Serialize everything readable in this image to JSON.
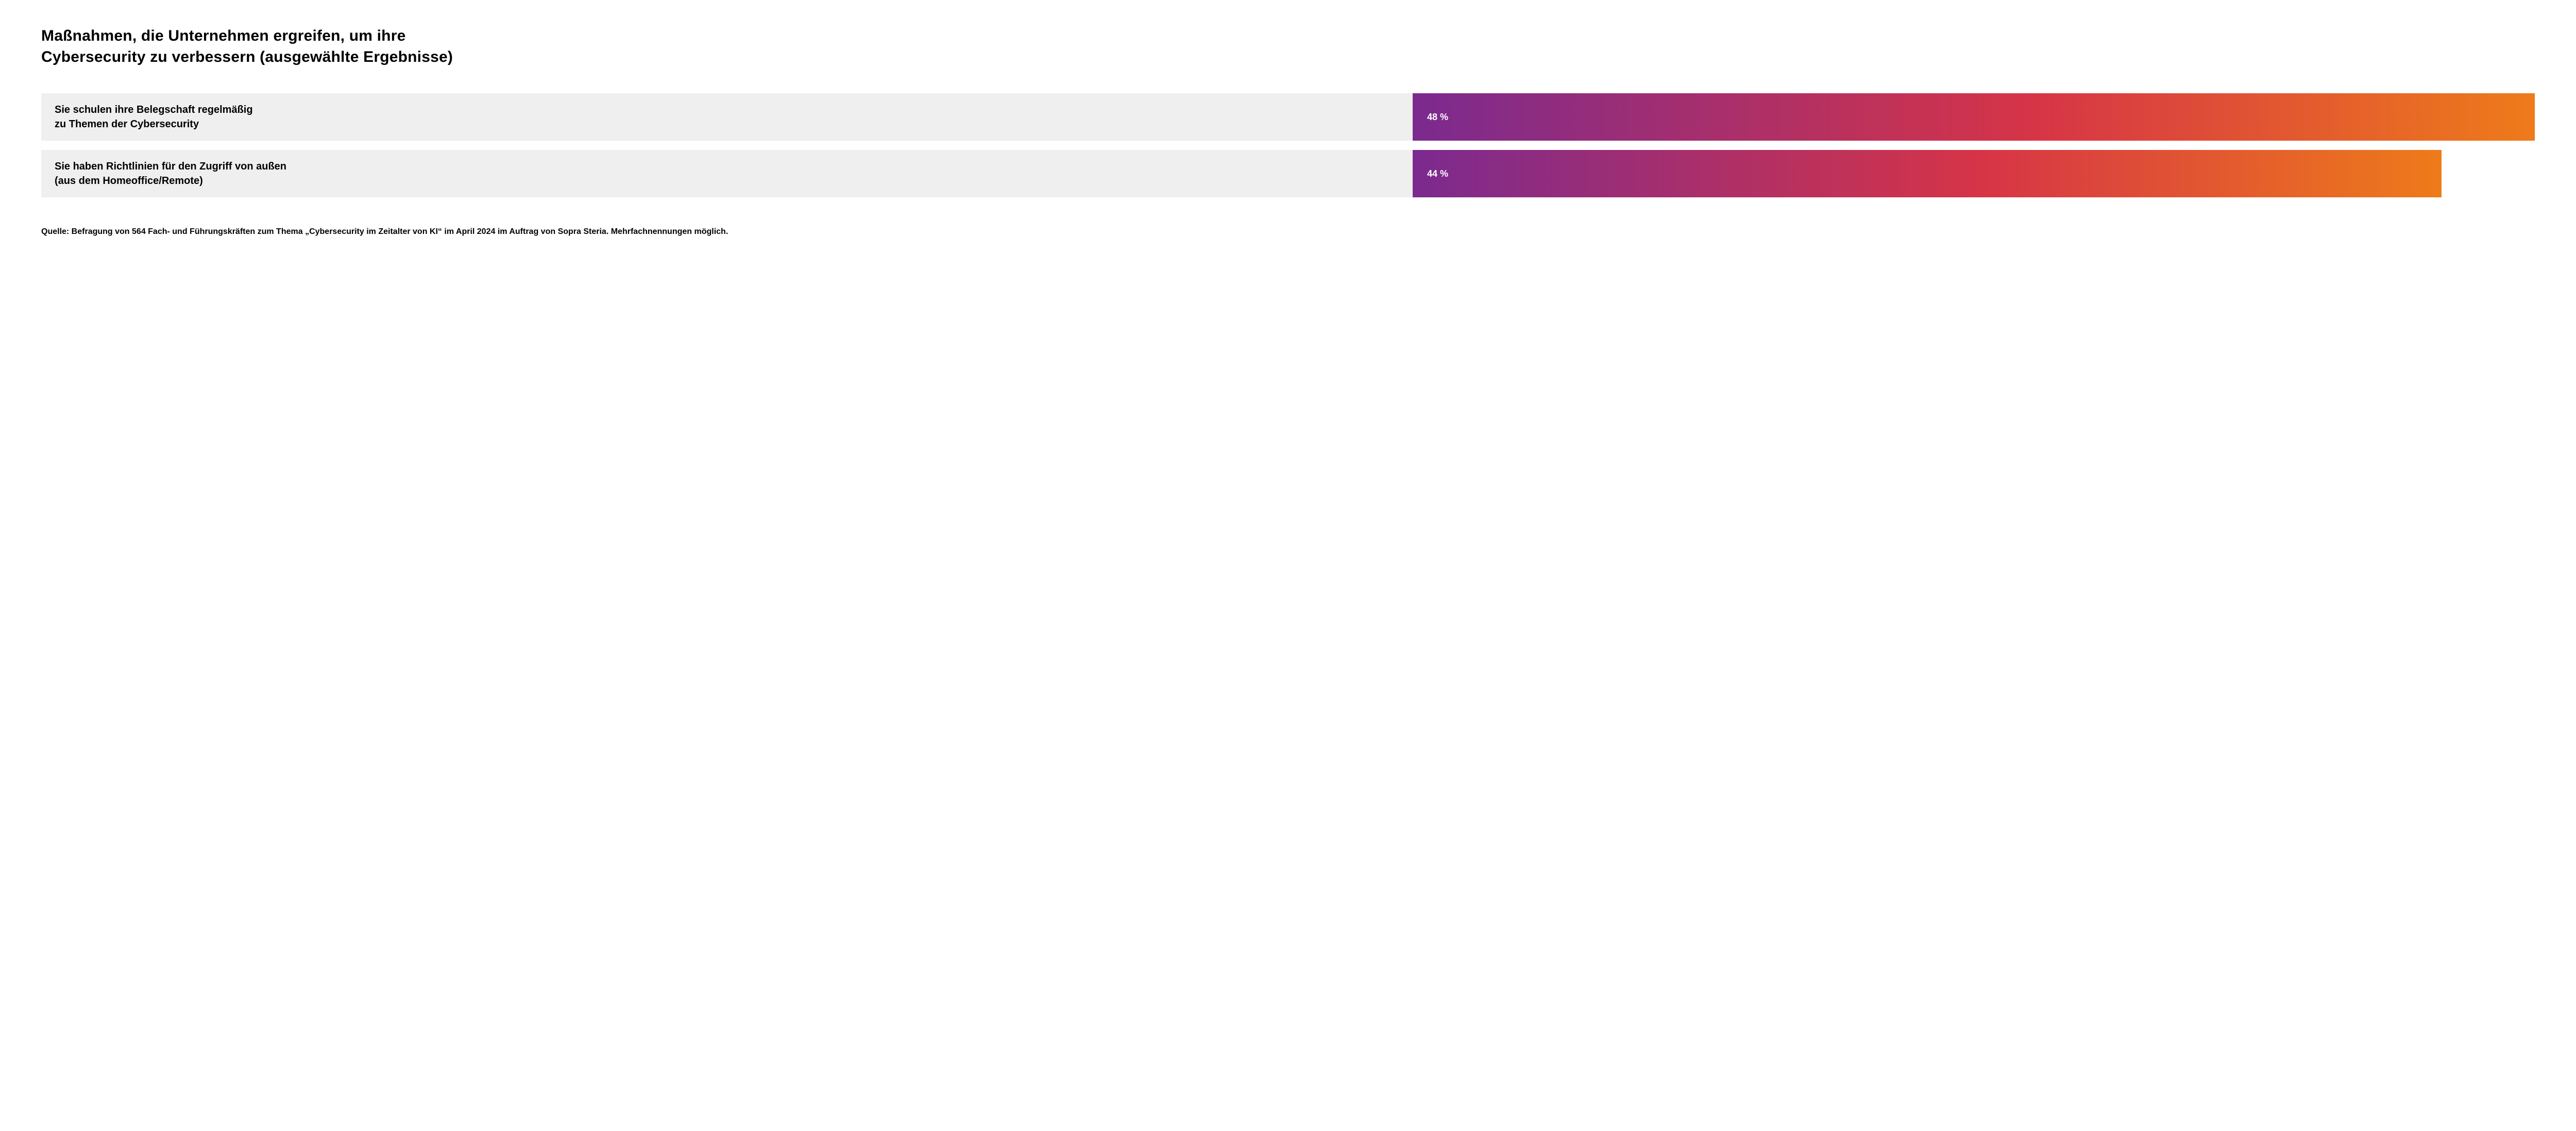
{
  "chart": {
    "type": "bar",
    "title": "Maßnahmen, die Unternehmen ergreifen, um ihre\nCybersecurity zu verbessern (ausgewählte Ergebnisse)",
    "title_fontsize": 30,
    "title_color": "#000000",
    "background_color": "#ffffff",
    "label_column_bg": "#efefef",
    "label_fontsize": 20,
    "value_fontsize": 18,
    "value_color": "#ffffff",
    "bar_max_percent": 48,
    "bar_gradient": {
      "start": "#7b2a8f",
      "mid": "#d63447",
      "end": "#ee7b1a"
    },
    "rows": [
      {
        "label": "Sie schulen ihre Belegschaft regelmäßig\nzu Themen der Cybersecurity",
        "value": 48,
        "value_label": "48 %"
      },
      {
        "label": "Sie haben Richtlinien für den Zugriff von außen\n(aus dem Homeoffice/Remote)",
        "value": 44,
        "value_label": "44 %"
      }
    ],
    "source": "Quelle: Befragung von 564 Fach- und Führungskräften zum Thema „Cybersecurity im Zeitalter von KI“ im April 2024 im Auftrag von Sopra Steria. Mehrfachnennungen möglich.",
    "source_fontsize": 16
  }
}
